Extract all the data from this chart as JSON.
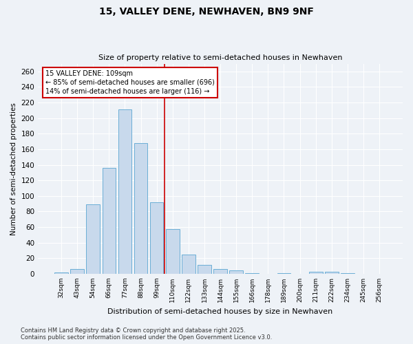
{
  "title1": "15, VALLEY DENE, NEWHAVEN, BN9 9NF",
  "title2": "Size of property relative to semi-detached houses in Newhaven",
  "xlabel": "Distribution of semi-detached houses by size in Newhaven",
  "ylabel": "Number of semi-detached properties",
  "categories": [
    "32sqm",
    "43sqm",
    "54sqm",
    "66sqm",
    "77sqm",
    "88sqm",
    "99sqm",
    "110sqm",
    "122sqm",
    "133sqm",
    "144sqm",
    "155sqm",
    "166sqm",
    "178sqm",
    "189sqm",
    "200sqm",
    "211sqm",
    "222sqm",
    "234sqm",
    "245sqm",
    "256sqm"
  ],
  "values": [
    2,
    6,
    89,
    136,
    211,
    168,
    92,
    57,
    25,
    11,
    6,
    4,
    1,
    0,
    1,
    0,
    3,
    3,
    1,
    0,
    0
  ],
  "bar_color": "#c8d9ec",
  "bar_edge_color": "#6aaed6",
  "marker_label": "15 VALLEY DENE: 109sqm",
  "annotation_line1": "← 85% of semi-detached houses are smaller (696)",
  "annotation_line2": "14% of semi-detached houses are larger (116) →",
  "vline_color": "#cc0000",
  "annotation_box_color": "#cc0000",
  "background_color": "#eef2f7",
  "grid_color": "#ffffff",
  "footnote1": "Contains HM Land Registry data © Crown copyright and database right 2025.",
  "footnote2": "Contains public sector information licensed under the Open Government Licence v3.0.",
  "ylim": [
    0,
    270
  ],
  "yticks": [
    0,
    20,
    40,
    60,
    80,
    100,
    120,
    140,
    160,
    180,
    200,
    220,
    240,
    260
  ]
}
